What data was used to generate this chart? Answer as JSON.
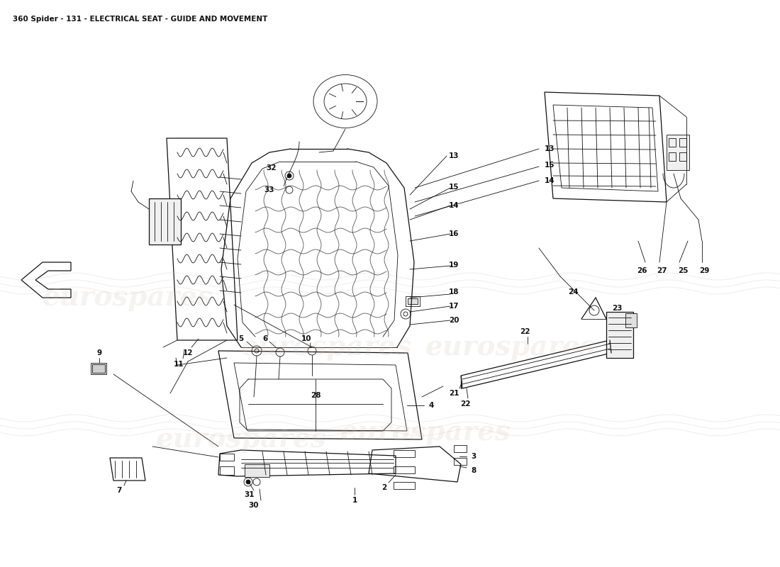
{
  "title": "360 Spider - 131 - ELECTRICAL SEAT - GUIDE AND MOVEMENT",
  "title_fontsize": 7.5,
  "bg": "#ffffff",
  "lc": "#111111",
  "wc": "#c8beb4",
  "wm_text": "eurospares",
  "fig_w": 11.0,
  "fig_h": 8.0,
  "dpi": 100
}
